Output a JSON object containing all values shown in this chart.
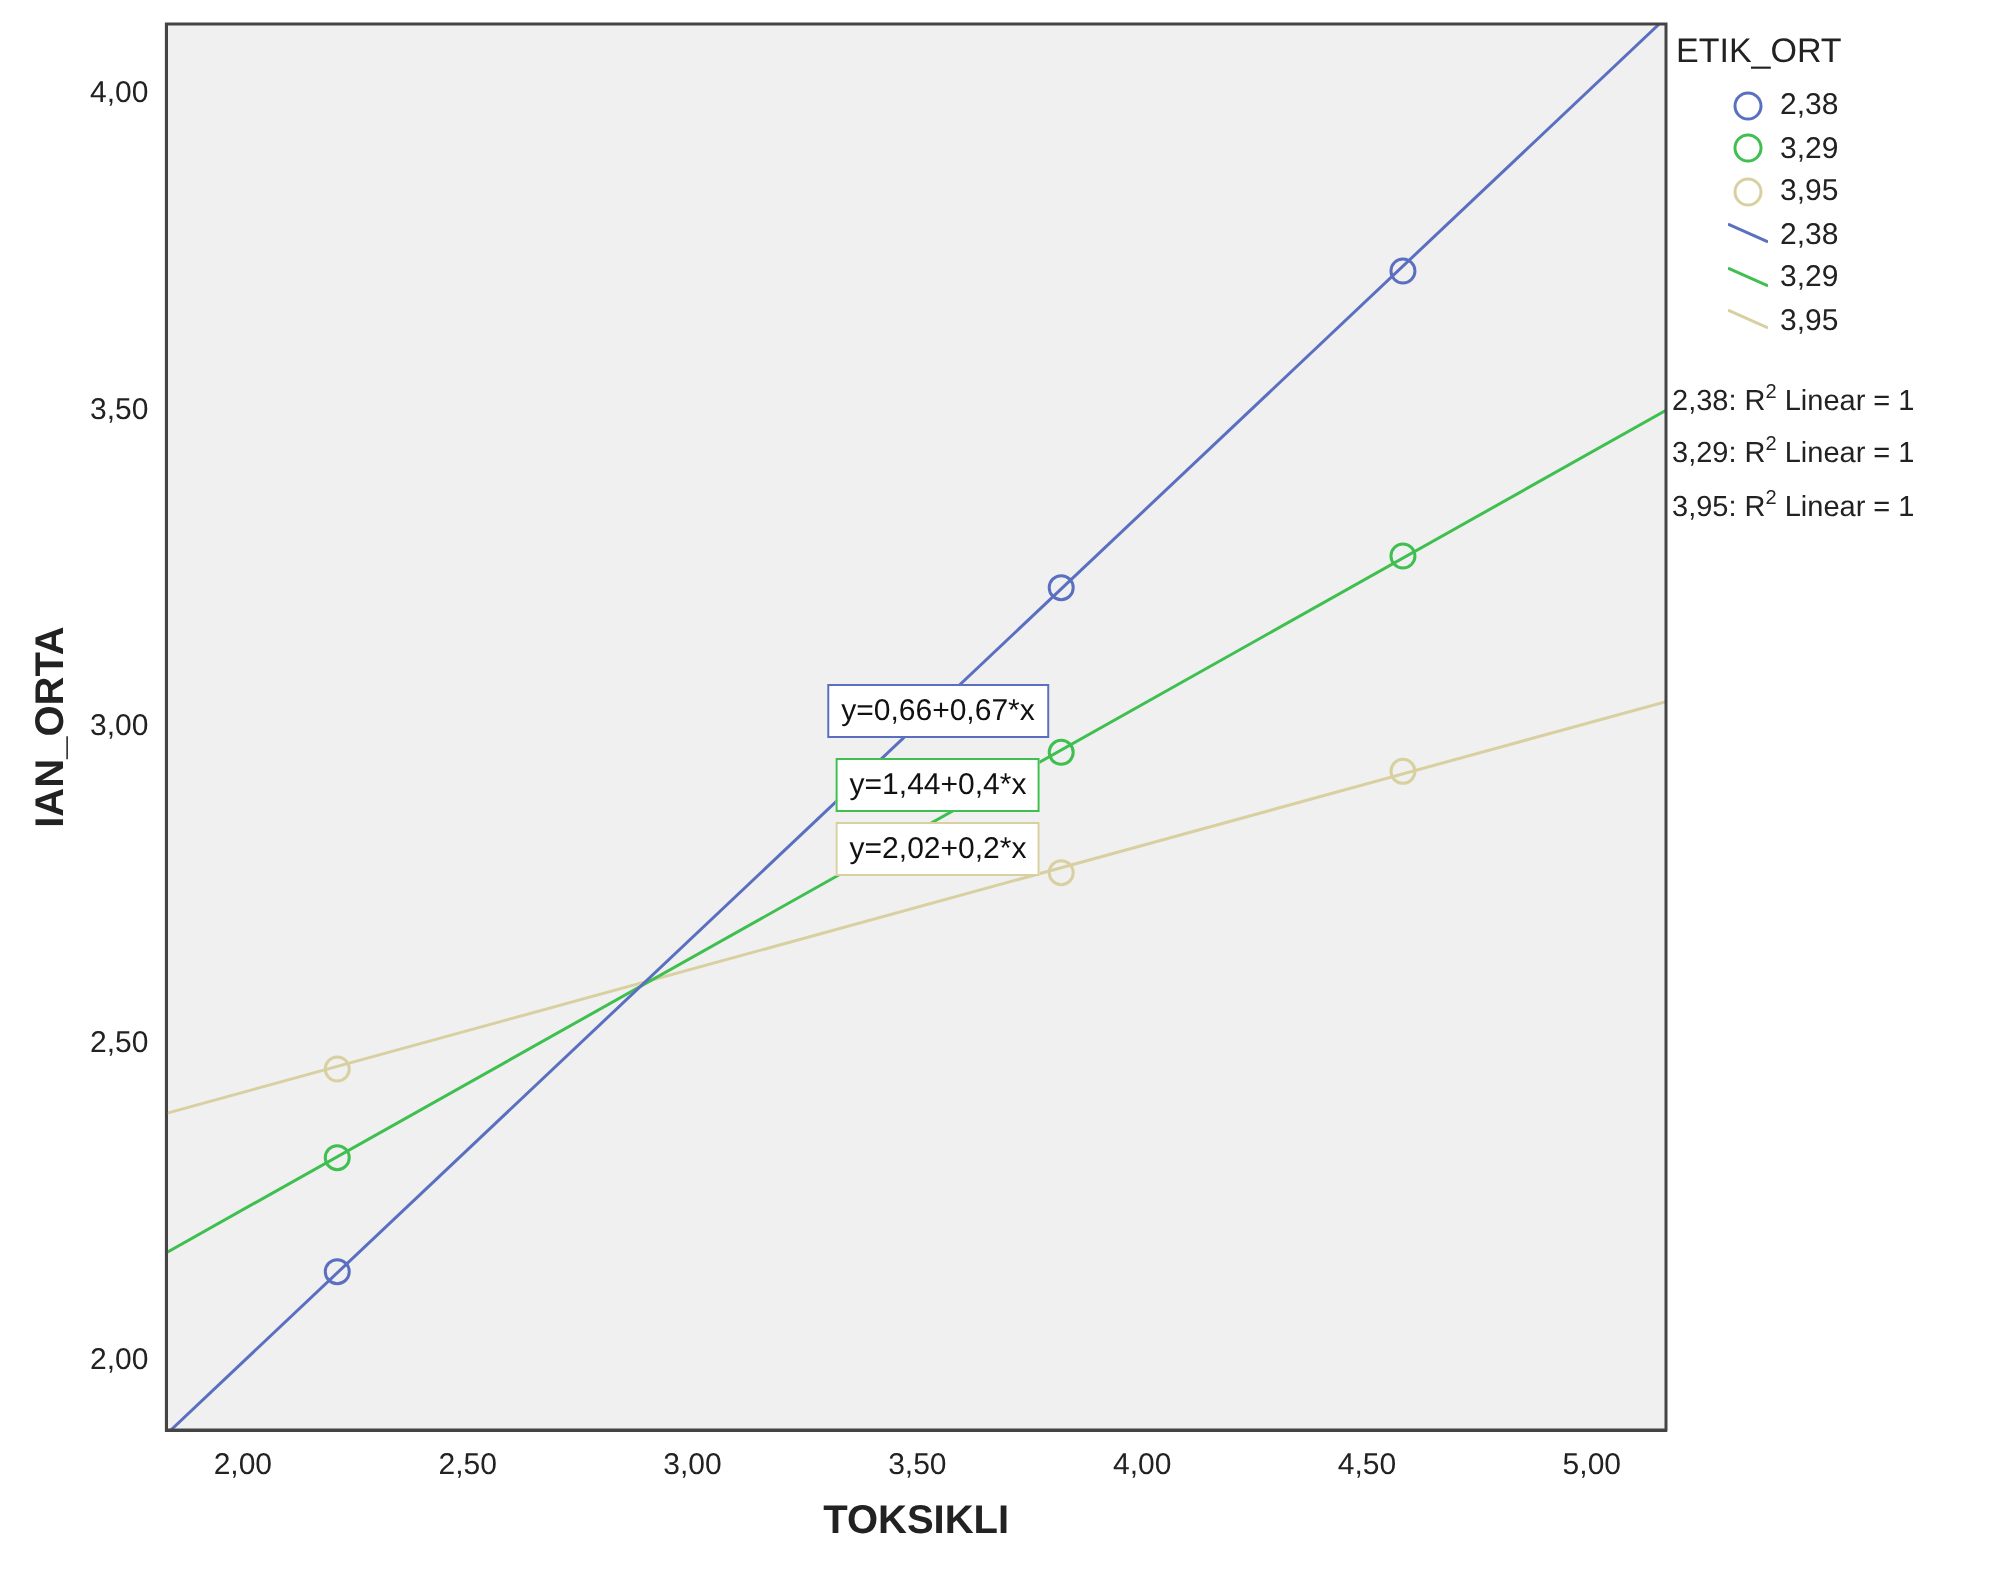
{
  "chart_data": {
    "type": "scatter",
    "xlabel": "TOKSIKLI",
    "ylabel": "IAN_ORTA",
    "legend_title": "ETIK_ORT",
    "legend": "top right",
    "grid": false,
    "xlim": [
      1.83,
      5.165
    ],
    "xticks": [
      {
        "value": 2,
        "label": "2,00"
      },
      {
        "value": 2.5,
        "label": "2,50"
      },
      {
        "value": 3,
        "label": "3,00"
      },
      {
        "value": 3.5,
        "label": "3,50"
      },
      {
        "value": 4,
        "label": "4,00"
      },
      {
        "value": 4.5,
        "label": "4,50"
      },
      {
        "value": 5,
        "label": "5,00"
      }
    ],
    "ylim": [
      1.89,
      4.11
    ],
    "yticks": [
      {
        "value": 2,
        "label": "2,00"
      },
      {
        "value": 2.5,
        "label": "2,50"
      },
      {
        "value": 3,
        "label": "3,00"
      },
      {
        "value": 3.5,
        "label": "3,50"
      },
      {
        "value": 4,
        "label": "4,00"
      }
    ],
    "series": [
      {
        "name": "2,38",
        "marker": "circle",
        "color": "#5a6fc0",
        "x": [
          2.21,
          3.82,
          4.58
        ],
        "values": [
          2.14,
          3.22,
          3.72
        ]
      },
      {
        "name": "3,29",
        "marker": "circle",
        "color": "#3fbf4f",
        "x": [
          2.21,
          3.82,
          4.58
        ],
        "values": [
          2.32,
          2.96,
          3.27
        ]
      },
      {
        "name": "3,95",
        "marker": "circle",
        "color": "#d8d0a0",
        "x": [
          2.21,
          3.82,
          4.58
        ],
        "values": [
          2.46,
          2.77,
          2.93
        ]
      },
      {
        "name": "2,38",
        "type": "line",
        "marker": "none",
        "color": "#5a6fc0",
        "x": [
          1.84,
          5.15
        ],
        "values": [
          1.89,
          4.11
        ]
      },
      {
        "name": "3,29",
        "type": "line",
        "marker": "none",
        "color": "#3fbf4f",
        "x": [
          1.83,
          5.165
        ],
        "values": [
          2.17,
          3.5
        ]
      },
      {
        "name": "3,95",
        "type": "line",
        "marker": "none",
        "color": "#d8d0a0",
        "x": [
          1.83,
          5.165
        ],
        "values": [
          2.39,
          3.04
        ]
      }
    ],
    "annotations": [
      "y=0,66+0,67*x",
      "y=1,44+0,4*x",
      "y=2,02+0,2*x",
      "2,38: R$^{2}$ Linear = 1",
      "3,29: R$^{2}$ Linear = 1",
      "3,95: R$^{2}$ Linear = 1"
    ]
  }
}
